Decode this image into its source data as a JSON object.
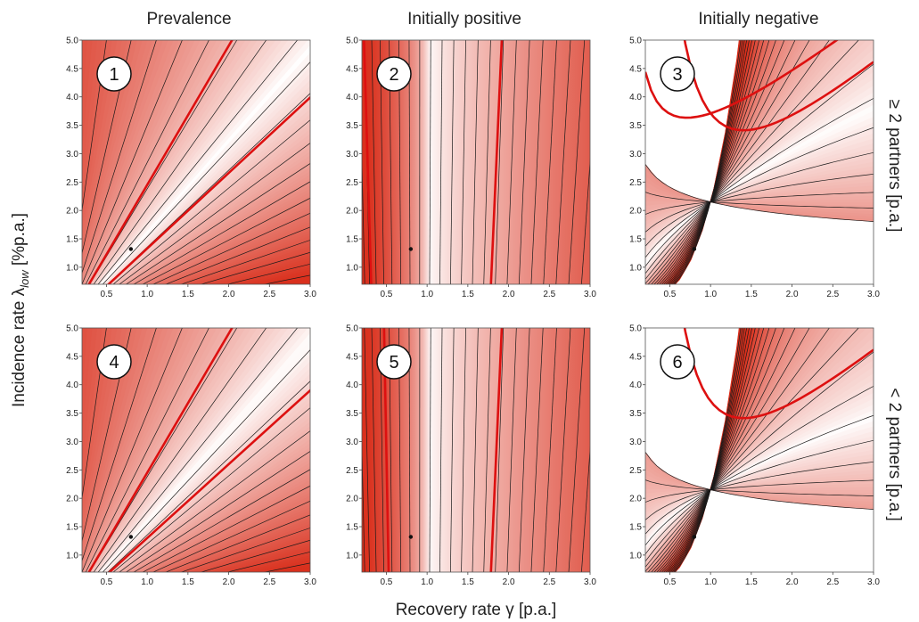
{
  "figure": {
    "column_titles": [
      "Prevalence",
      "Initially positive",
      "Initially negative"
    ],
    "row_labels": [
      "≥ 2 partners [p.a.]",
      "< 2 partners [p.a.]"
    ],
    "xlabel": "Recovery rate γ [p.a.]",
    "ylabel_main": "Incidence rate λ",
    "ylabel_sub": "low",
    "ylabel_unit": " [%p.a.]"
  },
  "colors": {
    "high": "#d9301d",
    "low": "#ffffff",
    "contour": "#1a1a1a",
    "highlight": "#dd1010"
  },
  "chart_data": [
    {
      "panel": "1",
      "type": "heatmap",
      "kind": "ratio",
      "title": "Prevalence",
      "row": "≥ 2 partners [p.a.]",
      "xlabel": "Recovery rate γ [p.a.]",
      "ylabel": "Incidence rate λlow [%p.a.]",
      "xlim": [
        0.2,
        3.0
      ],
      "ylim": [
        0.7,
        5.0
      ],
      "xticks": [
        "0.5",
        "1.0",
        "1.5",
        "2.0",
        "2.5",
        "3.0"
      ],
      "yticks": [
        "1.0",
        "1.5",
        "2.0",
        "2.5",
        "3.0",
        "3.5",
        "4.0",
        "4.5",
        "5.0"
      ],
      "white_slope": 1.62,
      "highlight_slopes": [
        2.45,
        1.33
      ],
      "contour_count": 24,
      "marker": {
        "x": 0.8,
        "y": 1.32
      }
    },
    {
      "panel": "2",
      "type": "heatmap",
      "kind": "vertical",
      "title": "Initially positive",
      "row": "≥ 2 partners [p.a.]",
      "xlabel": "Recovery rate γ [p.a.]",
      "ylabel": "Incidence rate λlow [%p.a.]",
      "xlim": [
        0.2,
        3.0
      ],
      "ylim": [
        0.7,
        5.0
      ],
      "xticks": [
        "0.5",
        "1.0",
        "1.5",
        "2.0",
        "2.5",
        "3.0"
      ],
      "yticks": [
        "1.0",
        "1.5",
        "2.0",
        "2.5",
        "3.0",
        "3.5",
        "4.0",
        "4.5",
        "5.0"
      ],
      "white_x": 1.0,
      "highlight_x": [
        0.27,
        1.85
      ],
      "contour_count": 22,
      "marker": {
        "x": 0.8,
        "y": 1.32
      }
    },
    {
      "panel": "3",
      "type": "heatmap",
      "kind": "power",
      "title": "Initially negative",
      "row": "≥ 2 partners [p.a.]",
      "xlabel": "Recovery rate γ [p.a.]",
      "ylabel": "Incidence rate λlow [%p.a.]",
      "xlim": [
        0.2,
        3.0
      ],
      "ylim": [
        0.7,
        5.0
      ],
      "xticks": [
        "0.5",
        "1.0",
        "1.5",
        "2.0",
        "2.5",
        "3.0"
      ],
      "yticks": [
        "1.0",
        "1.5",
        "2.0",
        "2.5",
        "3.0",
        "3.5",
        "4.0",
        "4.5",
        "5.0"
      ],
      "white_k": 0.6,
      "highlight_k": [
        1.75,
        0.42
      ],
      "contour_count": 24,
      "marker": {
        "x": 0.8,
        "y": 1.32
      }
    },
    {
      "panel": "4",
      "type": "heatmap",
      "kind": "ratio",
      "title": "Prevalence",
      "row": "< 2 partners [p.a.]",
      "xlabel": "Recovery rate γ [p.a.]",
      "ylabel": "Incidence rate λlow [%p.a.]",
      "xlim": [
        0.2,
        3.0
      ],
      "ylim": [
        0.7,
        5.0
      ],
      "xticks": [
        "0.5",
        "1.0",
        "1.5",
        "2.0",
        "2.5",
        "3.0"
      ],
      "yticks": [
        "1.0",
        "1.5",
        "2.0",
        "2.5",
        "3.0",
        "3.5",
        "4.0",
        "4.5",
        "5.0"
      ],
      "white_slope": 1.6,
      "highlight_slopes": [
        2.45,
        1.3
      ],
      "contour_count": 24,
      "marker": {
        "x": 0.8,
        "y": 1.32
      }
    },
    {
      "panel": "5",
      "type": "heatmap",
      "kind": "vertical",
      "title": "Initially positive",
      "row": "< 2 partners [p.a.]",
      "xlabel": "Recovery rate γ [p.a.]",
      "ylabel": "Incidence rate λlow [%p.a.]",
      "xlim": [
        0.2,
        3.0
      ],
      "ylim": [
        0.7,
        5.0
      ],
      "xticks": [
        "0.5",
        "1.0",
        "1.5",
        "2.0",
        "2.5",
        "3.0"
      ],
      "yticks": [
        "1.0",
        "1.5",
        "2.0",
        "2.5",
        "3.0",
        "3.5",
        "4.0",
        "4.5",
        "5.0"
      ],
      "white_x": 1.0,
      "highlight_x": [
        0.5,
        1.85
      ],
      "contour_count": 22,
      "marker": {
        "x": 0.8,
        "y": 1.32
      }
    },
    {
      "panel": "6",
      "type": "heatmap",
      "kind": "power",
      "title": "Initially negative",
      "row": "< 2 partners [p.a.]",
      "xlabel": "Recovery rate γ [p.a.]",
      "ylabel": "Incidence rate λlow [%p.a.]",
      "xlim": [
        0.2,
        3.0
      ],
      "ylim": [
        0.7,
        5.0
      ],
      "xticks": [
        "0.5",
        "1.0",
        "1.5",
        "2.0",
        "2.5",
        "3.0"
      ],
      "yticks": [
        "1.0",
        "1.5",
        "2.0",
        "2.5",
        "3.0",
        "3.5",
        "4.0",
        "4.5",
        "5.0"
      ],
      "white_k": 0.5,
      "highlight_k": [
        1.75
      ],
      "contour_count": 24,
      "marker": {
        "x": 0.8,
        "y": 1.32
      }
    }
  ]
}
